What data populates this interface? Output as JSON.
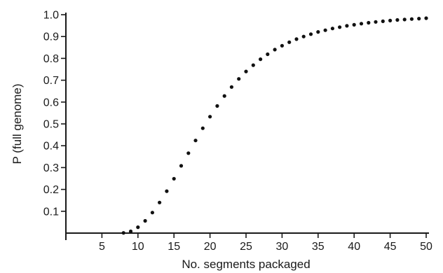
{
  "chart_data": {
    "type": "scatter",
    "title": "",
    "xlabel": "No. segments packaged",
    "ylabel": "P (full genome)",
    "xlim": [
      0,
      50
    ],
    "ylim": [
      0,
      1.0
    ],
    "x_ticks": [
      "5",
      "10",
      "15",
      "20",
      "25",
      "30",
      "35",
      "40",
      "45",
      "50"
    ],
    "y_ticks": [
      "0.1",
      "0.2",
      "0.3",
      "0.4",
      "0.5",
      "0.6",
      "0.7",
      "0.8",
      "0.9",
      "1.0"
    ],
    "grid": false,
    "legend": "none",
    "marker_color": "#111111",
    "series": [
      {
        "x": [
          8,
          9,
          10,
          11,
          12,
          13,
          14,
          15,
          16,
          17,
          18,
          19,
          20,
          21,
          22,
          23,
          24,
          25,
          26,
          27,
          28,
          29,
          30,
          31,
          32,
          33,
          34,
          35,
          36,
          37,
          38,
          39,
          40,
          41,
          42,
          43,
          44,
          45,
          46,
          47,
          48,
          49,
          50
        ],
        "y": [
          0.001,
          0.008,
          0.027,
          0.056,
          0.094,
          0.14,
          0.192,
          0.249,
          0.308,
          0.366,
          0.424,
          0.48,
          0.533,
          0.582,
          0.628,
          0.669,
          0.706,
          0.74,
          0.769,
          0.796,
          0.819,
          0.84,
          0.858,
          0.874,
          0.888,
          0.9,
          0.911,
          0.921,
          0.929,
          0.937,
          0.943,
          0.949,
          0.954,
          0.959,
          0.963,
          0.967,
          0.97,
          0.973,
          0.976,
          0.978,
          0.98,
          0.982,
          0.984
        ]
      }
    ]
  }
}
